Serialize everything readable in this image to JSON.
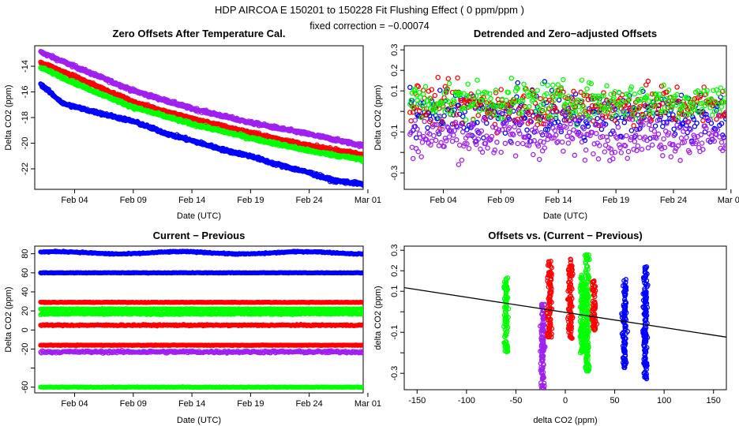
{
  "header": {
    "title": "HDP    AIRCOA E    150201 to 150228    Fit Flushing Effect ( 0 ppm/ppm )",
    "subtitle": "fixed correction = −0.00074"
  },
  "colors": {
    "blue": "#0000ff",
    "red": "#ff0000",
    "green": "#00ff00",
    "purple": "#a020f0",
    "line": "#000000"
  },
  "chart_data": [
    {
      "type": "scatter",
      "title": "Zero Offsets After Temperature Cal.",
      "xlabel": "Date (UTC)",
      "ylabel": "Delta CO2 (ppm)",
      "xlim": [
        0.6,
        28.6
      ],
      "ylim": [
        -23.6,
        -12.4
      ],
      "x_ticks": [
        4,
        9,
        14,
        19,
        24,
        29
      ],
      "x_tick_labels": [
        "Feb 04",
        "Feb 09",
        "Feb 14",
        "Feb 19",
        "Feb 24",
        "Mar 01"
      ],
      "y_ticks": [
        -22,
        -20,
        -18,
        -16,
        -14
      ],
      "y_tick_labels": [
        "-22",
        "-20",
        "-18",
        "-16",
        "-14"
      ],
      "series": [
        {
          "name": "purple",
          "color": "#a020f0",
          "x": [
            1.1,
            5,
            9,
            14,
            19,
            24,
            28.6
          ],
          "y": [
            -12.9,
            -14.4,
            -15.9,
            -17.3,
            -18.4,
            -19.3,
            -20.2
          ]
        },
        {
          "name": "red",
          "color": "#ff0000",
          "x": [
            1.1,
            5,
            9,
            14,
            19,
            24,
            28.6
          ],
          "y": [
            -13.7,
            -15.2,
            -16.8,
            -18.1,
            -19.2,
            -20.2,
            -20.9
          ]
        },
        {
          "name": "green",
          "color": "#00ff00",
          "x": [
            1.1,
            5,
            9,
            14,
            19,
            24,
            28.6
          ],
          "y": [
            -14.1,
            -15.7,
            -17.2,
            -18.5,
            -19.6,
            -20.6,
            -21.3
          ]
        },
        {
          "name": "blue",
          "color": "#0000ff",
          "x": [
            1.1,
            3,
            5,
            9,
            12,
            14,
            17,
            19,
            21,
            24,
            26,
            28.6
          ],
          "y": [
            -15.4,
            -16.9,
            -17.4,
            -18.3,
            -19.3,
            -19.8,
            -20.6,
            -21.0,
            -21.6,
            -22.3,
            -22.9,
            -23.2
          ]
        }
      ]
    },
    {
      "type": "scatter",
      "title": "Detrended and Zero−adjusted Offsets",
      "xlabel": "Date (UTC)",
      "ylabel": "Delta CO2 (ppm)",
      "xlim": [
        0.6,
        28.6
      ],
      "ylim": [
        -0.38,
        0.32
      ],
      "x_ticks": [
        4,
        9,
        14,
        19,
        24,
        29
      ],
      "x_tick_labels": [
        "Feb 04",
        "Feb 09",
        "Feb 14",
        "Feb 19",
        "Feb 24",
        "Mar 01"
      ],
      "y_ticks": [
        -0.3,
        -0.2,
        -0.1,
        0.0,
        0.1,
        0.2,
        0.3
      ],
      "y_tick_labels": [
        "-0.3",
        "",
        "-0.1",
        "",
        "0.1",
        "0.2",
        "0.3"
      ],
      "series": [
        {
          "name": "blue",
          "color": "#0000ff",
          "center": -0.02,
          "spread": 0.11
        },
        {
          "name": "red",
          "color": "#ff0000",
          "center": 0.03,
          "spread": 0.1
        },
        {
          "name": "green",
          "color": "#00ff00",
          "center": 0.05,
          "spread": 0.09
        },
        {
          "name": "purple",
          "color": "#a020f0",
          "center": -0.12,
          "spread": 0.1
        }
      ]
    },
    {
      "type": "scatter",
      "title": "Current − Previous",
      "xlabel": "Date (UTC)",
      "ylabel": "Delta CO2 (ppm)",
      "xlim": [
        0.6,
        28.6
      ],
      "ylim": [
        -66,
        88
      ],
      "x_ticks": [
        4,
        9,
        14,
        19,
        24,
        29
      ],
      "x_tick_labels": [
        "Feb 04",
        "Feb 09",
        "Feb 14",
        "Feb 19",
        "Feb 24",
        "Mar 01"
      ],
      "y_ticks": [
        -60,
        -40,
        -20,
        0,
        20,
        40,
        60,
        80
      ],
      "y_tick_labels": [
        "-60",
        "",
        "-20",
        "0",
        "20",
        "40",
        "60",
        "80"
      ],
      "series": [
        {
          "name": "blue",
          "color": "#0000ff",
          "levels": [
            81,
            60
          ],
          "widths": [
            1.2,
            0.6
          ]
        },
        {
          "name": "red",
          "color": "#ff0000",
          "levels": [
            29,
            5,
            -16
          ],
          "widths": [
            0.6,
            1.4,
            0.6
          ]
        },
        {
          "name": "green",
          "color": "#00ff00",
          "levels": [
            22,
            17,
            -60
          ],
          "widths": [
            0.8,
            1.6,
            0.6
          ]
        },
        {
          "name": "purple",
          "color": "#a020f0",
          "levels": [
            -23
          ],
          "widths": [
            2.6
          ]
        }
      ]
    },
    {
      "type": "scatter",
      "title": "Offsets vs. (Current − Previous)",
      "xlabel": "delta CO2 (ppm)",
      "ylabel": "delta CO2 (ppm)",
      "xlim": [
        -163,
        163
      ],
      "ylim": [
        -0.38,
        0.32
      ],
      "x_ticks": [
        -150,
        -100,
        -50,
        0,
        50,
        100,
        150
      ],
      "x_tick_labels": [
        "-150",
        "-100",
        "-50",
        "0",
        "50",
        "100",
        "150"
      ],
      "y_ticks": [
        -0.3,
        -0.2,
        -0.1,
        0.0,
        0.1,
        0.2,
        0.3
      ],
      "y_tick_labels": [
        "-0.3",
        "",
        "-0.1",
        "",
        "0.1",
        "0.2",
        "0.3"
      ],
      "fit_line": {
        "slope": -0.00074,
        "intercept": -0.003
      },
      "series": [
        {
          "name": "green",
          "color": "#00ff00",
          "x": [
            -60,
            17,
            22
          ],
          "ymin": [
            -0.2,
            -0.2,
            -0.29
          ],
          "ymax": [
            0.18,
            0.18,
            0.28
          ]
        },
        {
          "name": "purple",
          "color": "#a020f0",
          "x": [
            -23
          ],
          "ymin": [
            -0.38
          ],
          "ymax": [
            0.04
          ]
        },
        {
          "name": "red",
          "color": "#ff0000",
          "x": [
            -16,
            5,
            29
          ],
          "ymin": [
            -0.13,
            -0.13,
            -0.09
          ],
          "ymax": [
            0.25,
            0.26,
            0.15
          ]
        },
        {
          "name": "blue",
          "color": "#0000ff",
          "x": [
            60,
            81
          ],
          "ymin": [
            -0.28,
            -0.33
          ],
          "ymax": [
            0.16,
            0.22
          ]
        }
      ]
    }
  ]
}
